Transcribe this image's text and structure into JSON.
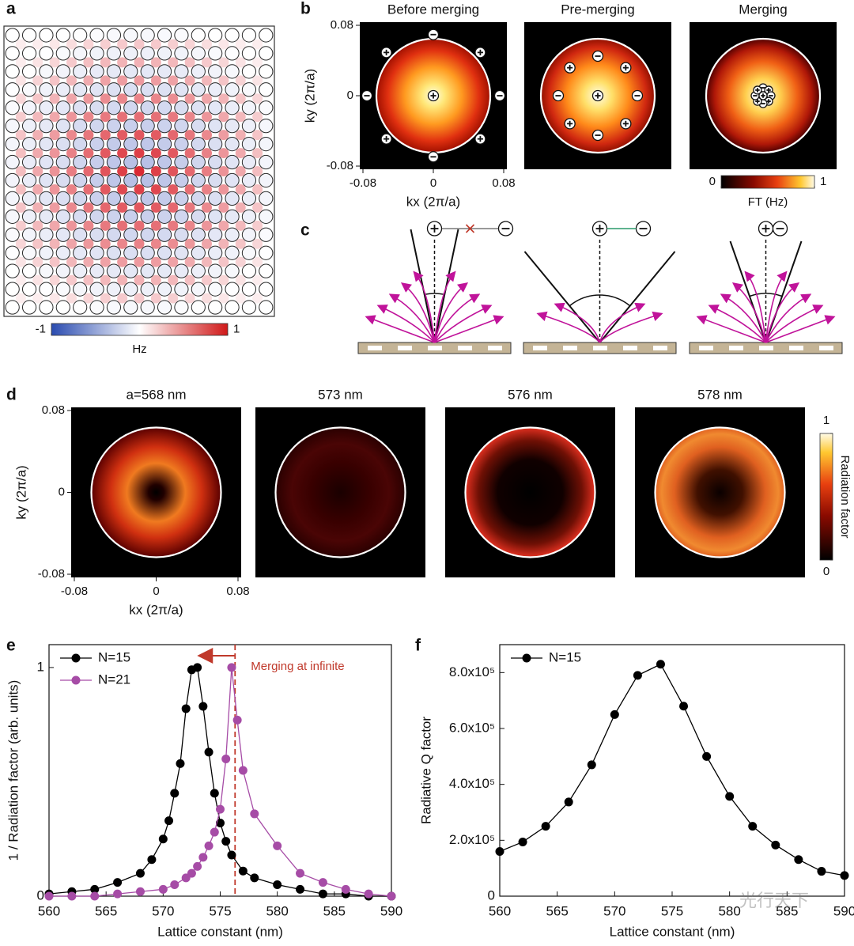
{
  "panel_labels": {
    "a": "a",
    "b": "b",
    "c": "c",
    "d": "d",
    "e": "e",
    "f": "f"
  },
  "panel_a": {
    "colorbar": {
      "range": [
        -1,
        1
      ],
      "ticks": [
        -1,
        1
      ],
      "title": "Hz"
    }
  },
  "panel_b": {
    "titles": [
      "Before merging",
      "Pre-merging",
      "Merging"
    ],
    "xlim": [
      -0.08,
      0.08
    ],
    "ylim": [
      -0.08,
      0.08
    ],
    "xticks": [
      -0.08,
      0,
      0.08
    ],
    "yticks": [
      -0.08,
      0,
      0.08
    ],
    "xlabel": "kx (2π/a)",
    "ylabel": "ky (2π/a)",
    "colorbar": {
      "range": [
        0,
        1
      ],
      "ticks": [
        0,
        1
      ],
      "title": "FT (Hz)"
    }
  },
  "panel_d": {
    "titles": [
      "a=568 nm",
      "573 nm",
      "576 nm",
      "578 nm"
    ],
    "xlim": [
      -0.08,
      0.08
    ],
    "ylim": [
      -0.08,
      0.08
    ],
    "xticks": [
      -0.08,
      0,
      0.08
    ],
    "yticks": [
      -0.08,
      0,
      0.08
    ],
    "xlabel": "kx (2π/a)",
    "ylabel": "ky (2π/a)",
    "colorbar": {
      "range": [
        0,
        1
      ],
      "ticks": [
        0,
        1
      ],
      "title": "Radiation factor"
    }
  },
  "chart_data": [
    {
      "type": "line",
      "xlabel": "Lattice constant (nm)",
      "ylabel": "1 / Radiation factor (arb. units)",
      "xlim": [
        560,
        590
      ],
      "ylim": [
        0,
        1.1
      ],
      "xticks": [
        560,
        565,
        570,
        575,
        580,
        585,
        590
      ],
      "yticks": [
        0,
        1
      ],
      "legend": "top-left",
      "vline": 576.3,
      "annotation": "Merging at infinite",
      "annotation_color": "#c0392b",
      "series": [
        {
          "name": "N=15",
          "color": "#000000",
          "x": [
            560,
            562,
            564,
            566,
            568,
            569,
            570,
            570.5,
            571,
            571.5,
            572,
            572.5,
            573,
            573.5,
            574,
            574.5,
            575,
            575.5,
            576,
            577,
            578,
            580,
            582,
            584,
            586,
            588,
            590
          ],
          "values": [
            0.01,
            0.02,
            0.03,
            0.06,
            0.1,
            0.16,
            0.25,
            0.33,
            0.45,
            0.58,
            0.82,
            0.99,
            1.0,
            0.83,
            0.63,
            0.45,
            0.32,
            0.24,
            0.18,
            0.11,
            0.08,
            0.05,
            0.03,
            0.01,
            0.01,
            0,
            0
          ]
        },
        {
          "name": "N=21",
          "color": "#a64ca6",
          "x": [
            560,
            562,
            564,
            566,
            568,
            570,
            571,
            572,
            572.5,
            573,
            573.5,
            574,
            574.5,
            575,
            575.5,
            576,
            576.5,
            577,
            578,
            580,
            582,
            584,
            586,
            588,
            590
          ],
          "values": [
            0,
            0,
            0,
            0.01,
            0.02,
            0.03,
            0.05,
            0.08,
            0.1,
            0.13,
            0.17,
            0.22,
            0.28,
            0.38,
            0.6,
            1.0,
            0.77,
            0.55,
            0.36,
            0.22,
            0.1,
            0.06,
            0.03,
            0.01,
            0
          ]
        }
      ]
    },
    {
      "type": "line",
      "xlabel": "Lattice constant (nm)",
      "ylabel": "Radiative Q factor",
      "xlim": [
        560,
        590
      ],
      "ylim": [
        0,
        900000
      ],
      "xticks": [
        560,
        565,
        570,
        575,
        580,
        585,
        590
      ],
      "yticks": [
        0,
        {
          "value": 200000,
          "label": "2.0x10⁵"
        },
        {
          "value": 400000,
          "label": "4.0x10⁵"
        },
        {
          "value": 600000,
          "label": "6.0x10⁵"
        },
        {
          "value": 800000,
          "label": "8.0x10⁵"
        }
      ],
      "legend": "top-left",
      "series": [
        {
          "name": "N=15",
          "color": "#000000",
          "x": [
            560,
            562,
            564,
            566,
            568,
            570,
            572,
            574,
            576,
            578,
            580,
            582,
            584,
            586,
            588,
            590
          ],
          "values": [
            160000,
            194000,
            250000,
            337000,
            470000,
            650000,
            790000,
            830000,
            680000,
            500000,
            357000,
            250000,
            183000,
            131000,
            89000,
            74000
          ]
        }
      ]
    }
  ],
  "watermark": "光行天下"
}
